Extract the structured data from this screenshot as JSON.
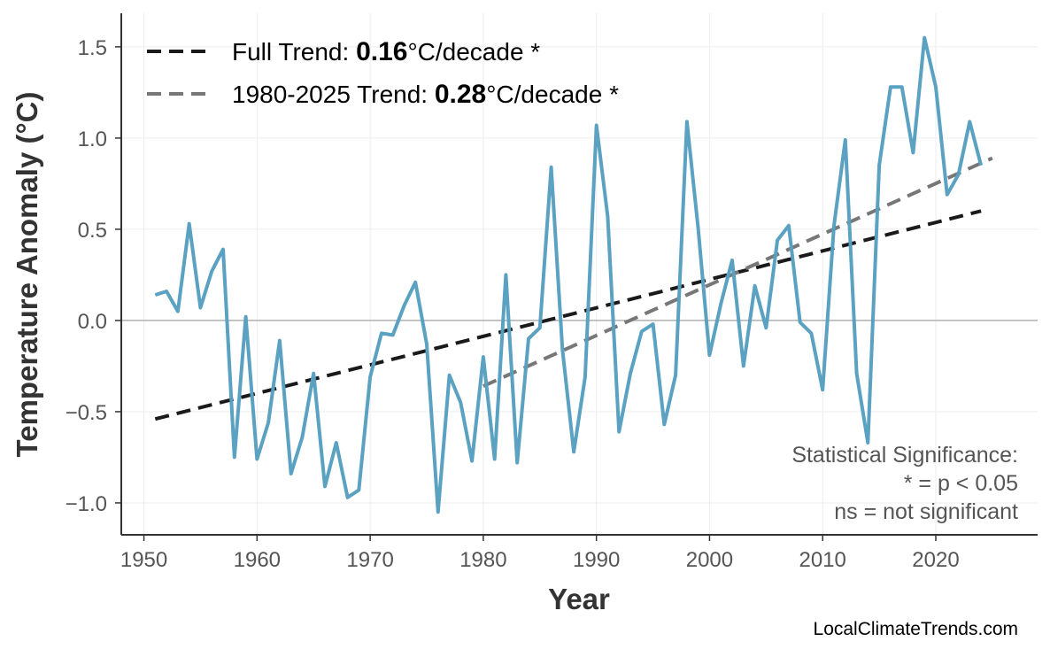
{
  "chart_data": {
    "type": "line",
    "title": "",
    "xlabel": "Year",
    "ylabel": "Temperature Anomaly (°C)",
    "xlim": [
      1948,
      2029
    ],
    "ylim": [
      -1.175,
      1.684
    ],
    "xticks": [
      1950,
      1960,
      1970,
      1980,
      1990,
      2000,
      2010,
      2020
    ],
    "yticks": [
      -1.0,
      -0.5,
      0.0,
      0.5,
      1.0,
      1.5
    ],
    "ytick_labels": [
      "−1.0",
      "−0.5",
      "0.0",
      "0.5",
      "1.0",
      "1.5"
    ],
    "grid": true,
    "zero_line": true,
    "series": [
      {
        "color": "#579fc1",
        "x": [
          1951,
          1952,
          1953,
          1954,
          1955,
          1956,
          1957,
          1958,
          1959,
          1960,
          1961,
          1962,
          1963,
          1964,
          1965,
          1966,
          1967,
          1968,
          1969,
          1970,
          1971,
          1972,
          1973,
          1974,
          1975,
          1976,
          1977,
          1978,
          1979,
          1980,
          1981,
          1982,
          1983,
          1984,
          1985,
          1986,
          1987,
          1988,
          1989,
          1990,
          1991,
          1992,
          1993,
          1994,
          1995,
          1996,
          1997,
          1998,
          1999,
          2000,
          2001,
          2002,
          2003,
          2004,
          2005,
          2006,
          2007,
          2008,
          2009,
          2010,
          2011,
          2012,
          2013,
          2014,
          2015,
          2016,
          2017,
          2018,
          2019,
          2020,
          2021,
          2022,
          2023,
          2024
        ],
        "y": [
          0.14,
          0.16,
          0.05,
          0.53,
          0.07,
          0.27,
          0.39,
          -0.75,
          0.02,
          -0.76,
          -0.56,
          -0.11,
          -0.84,
          -0.64,
          -0.29,
          -0.91,
          -0.67,
          -0.97,
          -0.93,
          -0.31,
          -0.07,
          -0.08,
          0.08,
          0.21,
          -0.13,
          -1.05,
          -0.3,
          -0.45,
          -0.77,
          -0.2,
          -0.76,
          0.25,
          -0.78,
          -0.1,
          -0.04,
          0.84,
          -0.16,
          -0.72,
          -0.31,
          1.07,
          0.57,
          -0.61,
          -0.29,
          -0.06,
          -0.02,
          -0.57,
          -0.3,
          1.09,
          0.5,
          -0.19,
          0.09,
          0.33,
          -0.25,
          0.19,
          -0.04,
          0.44,
          0.52,
          -0.01,
          -0.07,
          -0.38,
          0.52,
          0.99,
          -0.29,
          -0.67,
          0.85,
          1.28,
          1.28,
          0.92,
          1.55,
          1.28,
          0.69,
          0.8,
          1.09,
          0.85
        ]
      }
    ],
    "trends": [
      {
        "label_prefix": "Full Trend: ",
        "value": "0.16",
        "label_suffix": "°C/decade *",
        "color": "#1a1a1a",
        "x": [
          1951,
          2024
        ],
        "y": [
          -0.54,
          0.6
        ]
      },
      {
        "label_prefix": "1980-2025 Trend: ",
        "value": "0.28",
        "label_suffix": "°C/decade *",
        "color": "#777777",
        "x": [
          1980,
          2025
        ],
        "y": [
          -0.36,
          0.89
        ]
      }
    ],
    "legend_position": "top-left",
    "annotation": [
      "Statistical Significance:",
      "* = p < 0.05",
      "ns = not significant"
    ],
    "credit": "LocalClimateTrends.com"
  }
}
